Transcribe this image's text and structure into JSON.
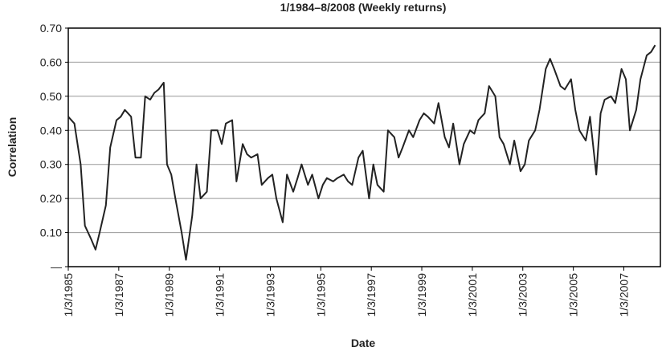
{
  "chart_data": {
    "type": "line",
    "title": "1/1984–8/2008 (Weekly returns)",
    "x_label": "Date",
    "y_label": "Correlation",
    "xlim": [
      "1985-01-03",
      "2008-06-15"
    ],
    "xticks": [
      {
        "value": "1985-01-03",
        "label": "1/3/1985"
      },
      {
        "value": "1987-01-03",
        "label": "1/3/1987"
      },
      {
        "value": "1989-01-03",
        "label": "1/3/1989"
      },
      {
        "value": "1991-01-03",
        "label": "1/3/1991"
      },
      {
        "value": "1993-01-03",
        "label": "1/3/1993"
      },
      {
        "value": "1995-01-03",
        "label": "1/3/1995"
      },
      {
        "value": "1997-01-03",
        "label": "1/3/1997"
      },
      {
        "value": "1999-01-03",
        "label": "1/3/1999"
      },
      {
        "value": "2001-01-03",
        "label": "1/3/2001"
      },
      {
        "value": "2003-01-03",
        "label": "1/3/2003"
      },
      {
        "value": "2005-01-03",
        "label": "1/3/2005"
      },
      {
        "value": "2007-01-03",
        "label": "1/3/2007"
      }
    ],
    "ylim": [
      0,
      0.7
    ],
    "yticks": [
      {
        "value": 0,
        "label": "—"
      },
      {
        "value": 0.1,
        "label": "0.10"
      },
      {
        "value": 0.2,
        "label": "0.20"
      },
      {
        "value": 0.3,
        "label": "0.30"
      },
      {
        "value": 0.4,
        "label": "0.40"
      },
      {
        "value": 0.5,
        "label": "0.50"
      },
      {
        "value": 0.6,
        "label": "0.60"
      },
      {
        "value": 0.7,
        "label": "0.70"
      }
    ],
    "grid": true,
    "x": [
      "1985-01-03",
      "1985-04-01",
      "1985-07-01",
      "1985-09-01",
      "1985-12-01",
      "1986-02-01",
      "1986-04-01",
      "1986-07-01",
      "1986-09-01",
      "1986-12-01",
      "1987-02-01",
      "1987-04-01",
      "1987-07-01",
      "1987-09-01",
      "1987-11-20",
      "1988-01-20",
      "1988-04-01",
      "1988-06-01",
      "1988-08-01",
      "1988-10-15",
      "1988-12-01",
      "1989-02-01",
      "1989-04-01",
      "1989-07-01",
      "1989-09-01",
      "1989-12-01",
      "1990-02-01",
      "1990-04-01",
      "1990-07-01",
      "1990-09-01",
      "1990-12-01",
      "1991-02-01",
      "1991-04-01",
      "1991-07-01",
      "1991-09-01",
      "1991-12-01",
      "1992-02-01",
      "1992-04-01",
      "1992-07-01",
      "1992-09-01",
      "1992-12-01",
      "1993-02-01",
      "1993-04-01",
      "1993-07-01",
      "1993-09-01",
      "1993-12-01",
      "1994-02-01",
      "1994-04-01",
      "1994-07-01",
      "1994-09-01",
      "1994-12-01",
      "1995-02-01",
      "1995-04-01",
      "1995-07-01",
      "1995-09-01",
      "1995-12-01",
      "1996-02-01",
      "1996-04-01",
      "1996-07-01",
      "1996-09-01",
      "1996-12-01",
      "1997-02-01",
      "1997-04-01",
      "1997-07-01",
      "1997-09-01",
      "1997-12-01",
      "1998-02-01",
      "1998-04-01",
      "1998-07-01",
      "1998-09-01",
      "1998-12-01",
      "1999-02-01",
      "1999-04-01",
      "1999-07-01",
      "1999-09-01",
      "1999-12-01",
      "2000-02-01",
      "2000-04-01",
      "2000-07-01",
      "2000-09-01",
      "2000-12-01",
      "2001-02-01",
      "2001-04-01",
      "2001-07-01",
      "2001-09-01",
      "2001-12-01",
      "2002-02-01",
      "2002-04-01",
      "2002-07-01",
      "2002-09-01",
      "2002-12-01",
      "2003-02-01",
      "2003-04-01",
      "2003-07-01",
      "2003-09-01",
      "2003-12-01",
      "2004-02-01",
      "2004-04-01",
      "2004-07-01",
      "2004-09-01",
      "2004-12-01",
      "2005-02-01",
      "2005-04-01",
      "2005-07-01",
      "2005-09-01",
      "2005-12-01",
      "2006-02-01",
      "2006-04-01",
      "2006-07-01",
      "2006-09-01",
      "2006-12-01",
      "2007-02-01",
      "2007-04-01",
      "2007-07-01",
      "2007-09-01",
      "2007-12-01",
      "2008-02-01",
      "2008-04-01"
    ],
    "series": [
      {
        "color": "#222222",
        "values": [
          0.44,
          0.42,
          0.3,
          0.12,
          0.08,
          0.05,
          0.1,
          0.18,
          0.35,
          0.43,
          0.44,
          0.46,
          0.44,
          0.32,
          0.32,
          0.5,
          0.49,
          0.51,
          0.52,
          0.54,
          0.3,
          0.27,
          0.2,
          0.1,
          0.02,
          0.15,
          0.3,
          0.2,
          0.22,
          0.4,
          0.4,
          0.36,
          0.42,
          0.43,
          0.25,
          0.36,
          0.33,
          0.32,
          0.33,
          0.24,
          0.26,
          0.27,
          0.2,
          0.13,
          0.27,
          0.22,
          0.26,
          0.3,
          0.24,
          0.27,
          0.2,
          0.24,
          0.26,
          0.25,
          0.26,
          0.27,
          0.25,
          0.24,
          0.32,
          0.34,
          0.2,
          0.3,
          0.24,
          0.22,
          0.4,
          0.38,
          0.32,
          0.35,
          0.4,
          0.38,
          0.43,
          0.45,
          0.44,
          0.42,
          0.48,
          0.38,
          0.35,
          0.42,
          0.3,
          0.36,
          0.4,
          0.39,
          0.43,
          0.45,
          0.53,
          0.5,
          0.38,
          0.36,
          0.3,
          0.37,
          0.28,
          0.3,
          0.37,
          0.4,
          0.46,
          0.58,
          0.61,
          0.58,
          0.53,
          0.52,
          0.55,
          0.46,
          0.4,
          0.37,
          0.44,
          0.27,
          0.45,
          0.49,
          0.5,
          0.48,
          0.58,
          0.55,
          0.4,
          0.46,
          0.55,
          0.62,
          0.63,
          0.65
        ]
      }
    ]
  }
}
